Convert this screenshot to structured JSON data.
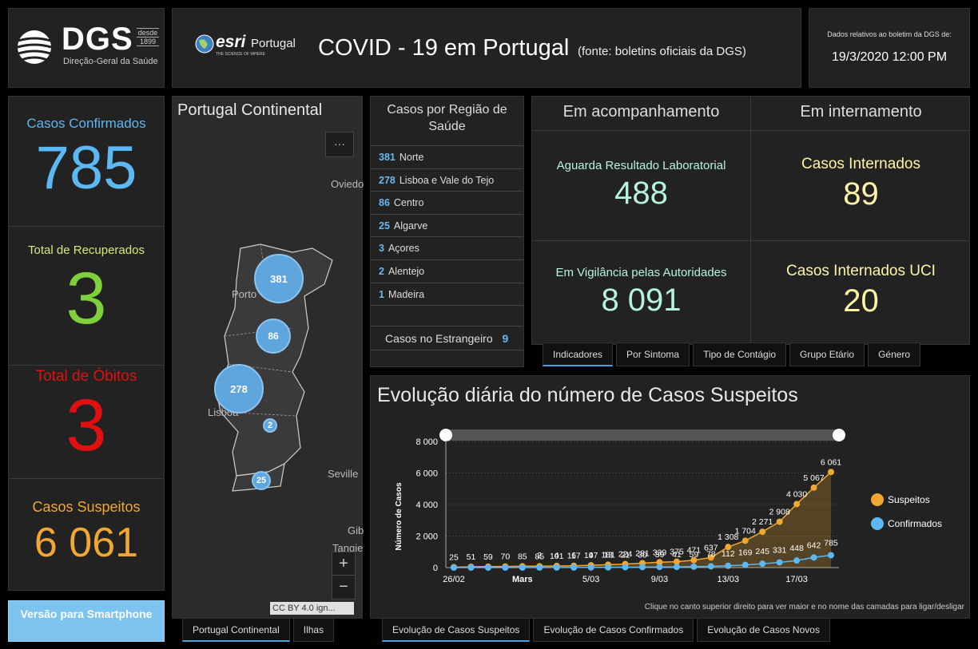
{
  "header": {
    "dgs_name": "DGS",
    "dgs_desde": "desde",
    "dgs_year": "1899",
    "dgs_subtitle": "Direção-Geral da Saúde",
    "esri_name": "esri",
    "esri_tagline": "THE SCIENCE OF WHERE",
    "esri_country": "Portugal",
    "title": "COVID - 19 em Portugal",
    "source": "(fonte: boletins oficiais da DGS)",
    "date_label": "Dados relativos ao boletim da DGS de:",
    "date_value": "19/3/2020 12:00 PM"
  },
  "stats": {
    "confirmed_label": "Casos Confirmados",
    "confirmed_value": "785",
    "recovered_label": "Total de Recuperados",
    "recovered_value": "3",
    "deaths_label": "Total de Óbitos",
    "deaths_value": "3",
    "suspected_label": "Casos Suspeitos",
    "suspected_value": "6 061"
  },
  "smartphone_button": "Versão para Smartphone",
  "map": {
    "title": "Portugal Continental",
    "menu_glyph": "···",
    "labels": {
      "oviedo": "Oviedo",
      "porto": "Porto",
      "lisboa": "Lisboa",
      "seville": "Seville",
      "gib": "Gib",
      "tangier": "Tangie"
    },
    "clusters": [
      "381",
      "86",
      "278",
      "2",
      "25"
    ],
    "zoom_in": "+",
    "zoom_out": "−",
    "attribution": "CC BY 4.0 ign...",
    "tabs": [
      "Portugal Continental",
      "Ilhas"
    ]
  },
  "regions": {
    "title": "Casos por Região de Saúde",
    "items": [
      {
        "num": "381",
        "name": "Norte"
      },
      {
        "num": "278",
        "name": "Lisboa e Vale do Tejo"
      },
      {
        "num": "86",
        "name": "Centro"
      },
      {
        "num": "25",
        "name": "Algarve"
      },
      {
        "num": "3",
        "name": "Açores"
      },
      {
        "num": "2",
        "name": "Alentejo"
      },
      {
        "num": "1",
        "name": "Madeira"
      }
    ],
    "foreign_label": "Casos no Estrangeiro",
    "foreign_value": "9"
  },
  "indicators": {
    "col1_head": "Em acompanhamento",
    "col2_head": "Em internamento",
    "awaiting_label": "Aguarda Resultado Laboratorial",
    "awaiting_value": "488",
    "hospital_label": "Casos Internados",
    "hospital_value": "89",
    "surveillance_label": "Em Vigilância pelas Autoridades",
    "surveillance_value": "8 091",
    "icu_label": "Casos Internados UCI",
    "icu_value": "20",
    "tabs": [
      "Indicadores",
      "Por Sintoma",
      "Tipo de Contágio",
      "Grupo Etário",
      "Género"
    ]
  },
  "chart": {
    "footnote": "Clique no canto superior direito para ver maior e no nome das camadas para ligar/desligar",
    "tabs": [
      "Evolução de Casos Suspeitos",
      "Evolução de Casos Confirmados",
      "Evolução de Casos Novos"
    ]
  },
  "colors": {
    "confirmed": "#5cb8f2",
    "recovered": "#7fd13b",
    "deaths": "#e01010",
    "suspected": "#f0a832",
    "accent": "#4aa3df"
  },
  "chart_data": {
    "type": "line",
    "title": "Evolução diária do número de Casos Suspeitos",
    "xlabel": "",
    "ylabel": "Número de Casos",
    "ylim": [
      0,
      8000
    ],
    "yticks": [
      "8 000",
      "6 000",
      "4 000",
      "2 000",
      "0"
    ],
    "x": [
      "26/02",
      "27/02",
      "28/02",
      "29/02",
      "01/03",
      "02/03",
      "03/03",
      "04/03",
      "05/03",
      "06/03",
      "07/03",
      "08/03",
      "09/03",
      "10/03",
      "11/03",
      "12/03",
      "13/03",
      "14/03",
      "15/03",
      "16/03",
      "17/03",
      "18/03",
      "19/03"
    ],
    "xtick_labels": [
      {
        "i": 0,
        "label": "26/02",
        "bold": false
      },
      {
        "i": 4,
        "label": "Mars",
        "bold": true
      },
      {
        "i": 8,
        "label": "5/03",
        "bold": false
      },
      {
        "i": 12,
        "label": "9/03",
        "bold": false
      },
      {
        "i": 16,
        "label": "13/03",
        "bold": false
      },
      {
        "i": 20,
        "label": "17/03",
        "bold": false
      }
    ],
    "legend_position": "right",
    "series": [
      {
        "name": "Suspeitos",
        "color": "#f0a832",
        "values": [
          25,
          51,
          59,
          70,
          85,
          85,
          101,
          117,
          147,
          181,
          224,
          281,
          339,
          375,
          471,
          637,
          1308,
          1704,
          2271,
          2908,
          4030,
          5067,
          6061
        ],
        "labels": [
          "25",
          "51",
          "59",
          "70",
          "85",
          "85",
          "101",
          "117",
          "147",
          "181",
          "224",
          "281",
          "339",
          "375",
          "471",
          "637",
          "1 308",
          "1 704",
          "2 271",
          "2 908",
          "4 030",
          "5 067",
          "6 061"
        ]
      },
      {
        "name": "Confirmados",
        "color": "#5cb8f2",
        "values": [
          0,
          0,
          0,
          0,
          0,
          2,
          4,
          6,
          9,
          13,
          21,
          30,
          39,
          41,
          59,
          78,
          112,
          169,
          245,
          331,
          448,
          642,
          785
        ],
        "labels": [
          "",
          "",
          "",
          "",
          "",
          "2",
          "4",
          "6",
          "9",
          "13",
          "21",
          "30",
          "39",
          "41",
          "59",
          "78",
          "112",
          "169",
          "245",
          "331",
          "448",
          "642",
          "785"
        ]
      }
    ]
  }
}
